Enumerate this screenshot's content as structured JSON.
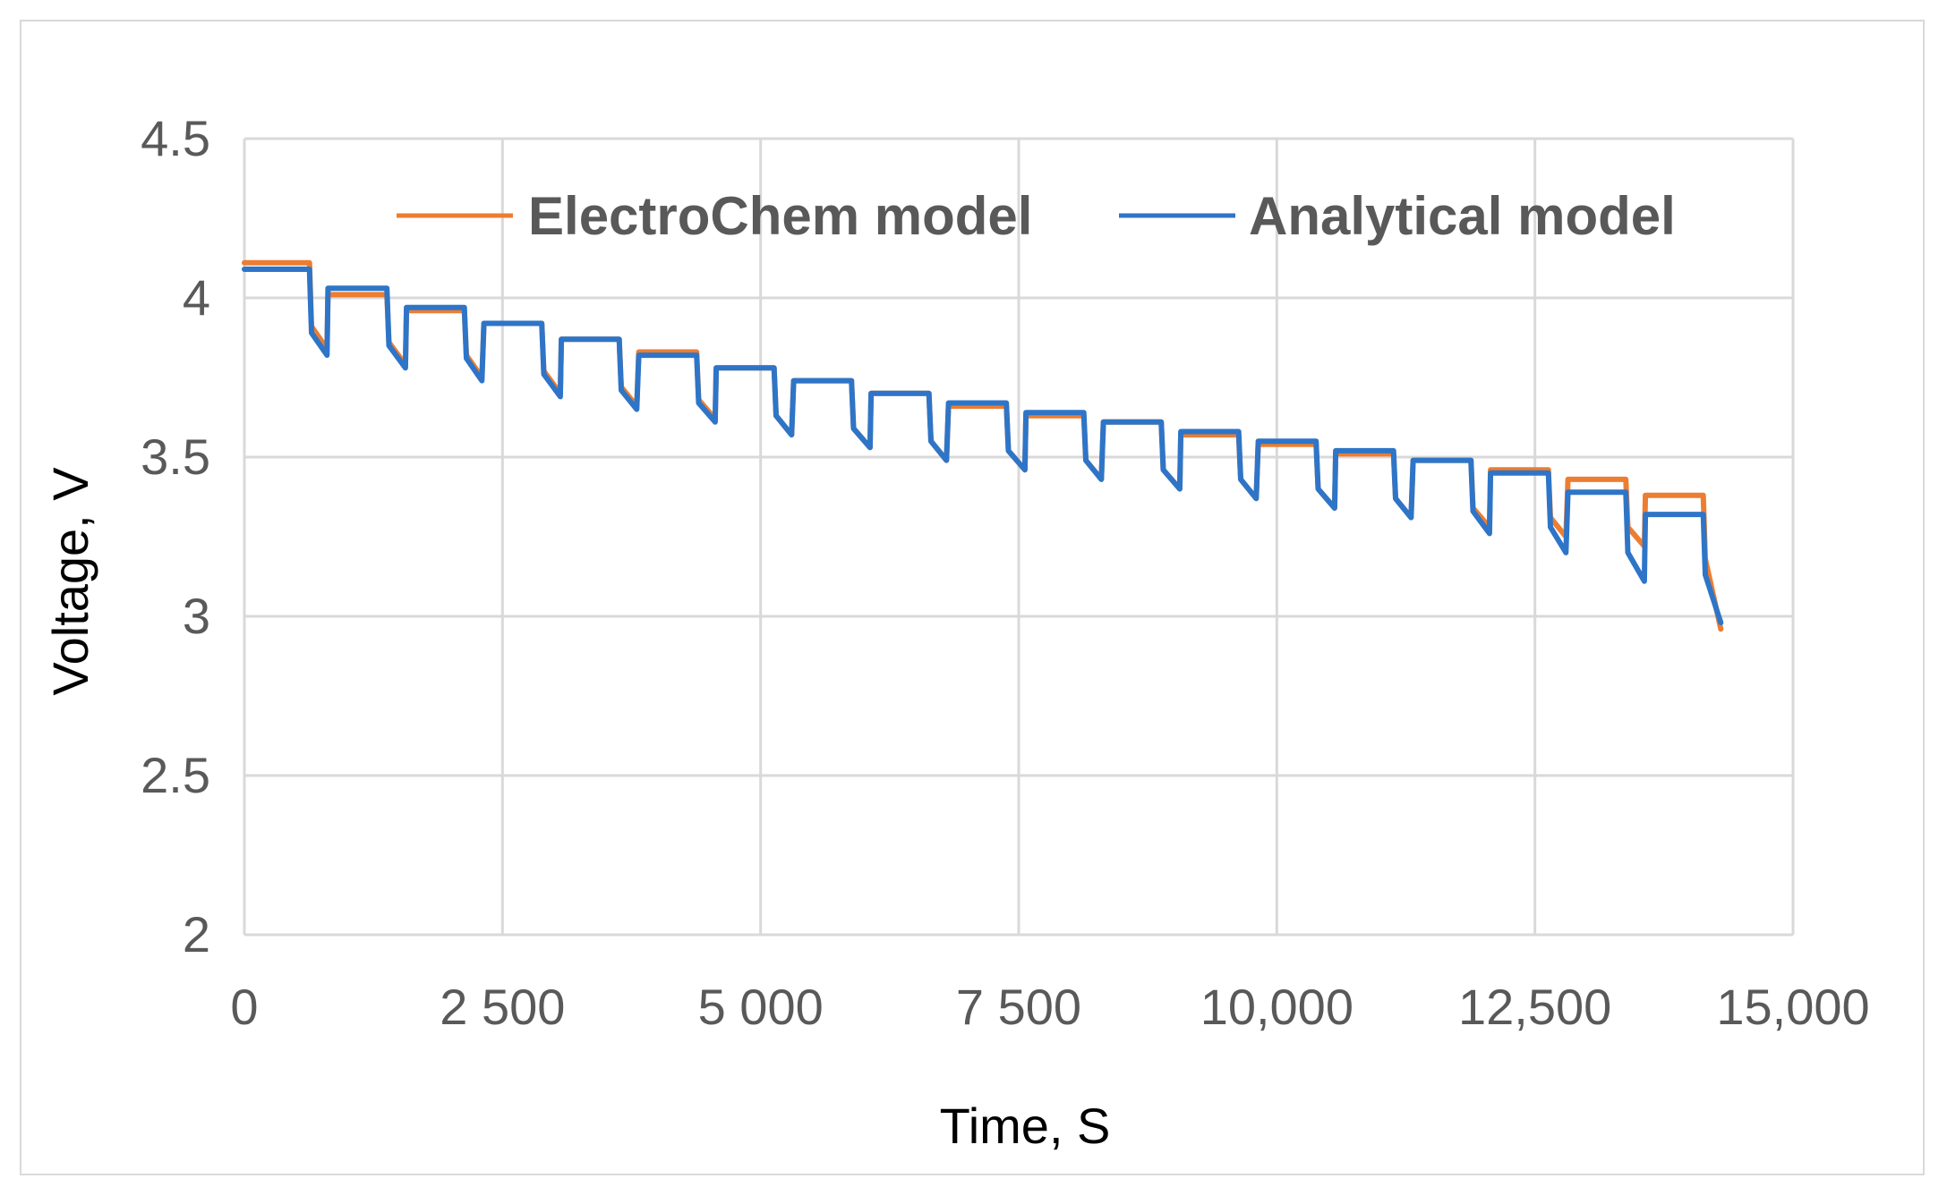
{
  "chart_data": {
    "type": "line",
    "title": "",
    "xlabel": "Time, S",
    "ylabel": "Voltage, V",
    "xlim": [
      0,
      15000
    ],
    "ylim": [
      2,
      4.5
    ],
    "grid": true,
    "legend_position": "top",
    "x_ticks": [
      {
        "value": 0,
        "label": "0"
      },
      {
        "value": 2500,
        "label": "2 500"
      },
      {
        "value": 5000,
        "label": "5 000"
      },
      {
        "value": 7500,
        "label": "7 500"
      },
      {
        "value": 10000,
        "label": "10,000"
      },
      {
        "value": 12500,
        "label": "12,500"
      },
      {
        "value": 15000,
        "label": "15,000"
      }
    ],
    "y_ticks": [
      {
        "value": 2,
        "label": "2"
      },
      {
        "value": 2.5,
        "label": "2.5"
      },
      {
        "value": 3,
        "label": "3"
      },
      {
        "value": 3.5,
        "label": "3.5"
      },
      {
        "value": 4,
        "label": "4"
      },
      {
        "value": 4.5,
        "label": "4.5"
      }
    ],
    "series": [
      {
        "name": "ElectroChem model",
        "color": "#ED7D31",
        "points": [
          [
            0,
            4.11
          ],
          [
            630,
            4.11
          ],
          [
            650,
            3.91
          ],
          [
            800,
            3.84
          ],
          [
            810,
            4.01
          ],
          [
            1380,
            4.01
          ],
          [
            1400,
            3.86
          ],
          [
            1560,
            3.79
          ],
          [
            1570,
            3.96
          ],
          [
            2130,
            3.96
          ],
          [
            2150,
            3.82
          ],
          [
            2300,
            3.75
          ],
          [
            2320,
            3.92
          ],
          [
            2880,
            3.92
          ],
          [
            2900,
            3.77
          ],
          [
            3060,
            3.7
          ],
          [
            3070,
            3.87
          ],
          [
            3630,
            3.87
          ],
          [
            3650,
            3.72
          ],
          [
            3800,
            3.66
          ],
          [
            3820,
            3.83
          ],
          [
            4380,
            3.83
          ],
          [
            4400,
            3.68
          ],
          [
            4560,
            3.62
          ],
          [
            4570,
            3.78
          ],
          [
            5130,
            3.78
          ],
          [
            5150,
            3.63
          ],
          [
            5300,
            3.57
          ],
          [
            5320,
            3.74
          ],
          [
            5880,
            3.74
          ],
          [
            5900,
            3.59
          ],
          [
            6060,
            3.53
          ],
          [
            6070,
            3.7
          ],
          [
            6630,
            3.7
          ],
          [
            6650,
            3.55
          ],
          [
            6800,
            3.49
          ],
          [
            6820,
            3.66
          ],
          [
            7380,
            3.66
          ],
          [
            7400,
            3.52
          ],
          [
            7560,
            3.46
          ],
          [
            7570,
            3.63
          ],
          [
            8130,
            3.63
          ],
          [
            8150,
            3.49
          ],
          [
            8300,
            3.43
          ],
          [
            8320,
            3.61
          ],
          [
            8880,
            3.61
          ],
          [
            8900,
            3.46
          ],
          [
            9060,
            3.4
          ],
          [
            9070,
            3.57
          ],
          [
            9630,
            3.57
          ],
          [
            9650,
            3.43
          ],
          [
            9800,
            3.37
          ],
          [
            9820,
            3.54
          ],
          [
            10380,
            3.54
          ],
          [
            10400,
            3.4
          ],
          [
            10560,
            3.34
          ],
          [
            10570,
            3.51
          ],
          [
            11130,
            3.51
          ],
          [
            11150,
            3.37
          ],
          [
            11300,
            3.31
          ],
          [
            11320,
            3.49
          ],
          [
            11880,
            3.49
          ],
          [
            11900,
            3.34
          ],
          [
            12060,
            3.28
          ],
          [
            12070,
            3.46
          ],
          [
            12630,
            3.46
          ],
          [
            12650,
            3.31
          ],
          [
            12800,
            3.25
          ],
          [
            12820,
            3.43
          ],
          [
            13380,
            3.43
          ],
          [
            13400,
            3.28
          ],
          [
            13560,
            3.22
          ],
          [
            13570,
            3.38
          ],
          [
            14130,
            3.38
          ],
          [
            14150,
            3.18
          ],
          [
            14300,
            2.96
          ]
        ]
      },
      {
        "name": "Analytical model",
        "color": "#2E75C8",
        "points": [
          [
            0,
            4.09
          ],
          [
            630,
            4.09
          ],
          [
            650,
            3.89
          ],
          [
            800,
            3.82
          ],
          [
            810,
            4.03
          ],
          [
            1380,
            4.03
          ],
          [
            1400,
            3.85
          ],
          [
            1560,
            3.78
          ],
          [
            1570,
            3.97
          ],
          [
            2130,
            3.97
          ],
          [
            2150,
            3.81
          ],
          [
            2300,
            3.74
          ],
          [
            2320,
            3.92
          ],
          [
            2880,
            3.92
          ],
          [
            2900,
            3.76
          ],
          [
            3060,
            3.69
          ],
          [
            3070,
            3.87
          ],
          [
            3630,
            3.87
          ],
          [
            3650,
            3.71
          ],
          [
            3800,
            3.65
          ],
          [
            3820,
            3.82
          ],
          [
            4380,
            3.82
          ],
          [
            4400,
            3.67
          ],
          [
            4560,
            3.61
          ],
          [
            4570,
            3.78
          ],
          [
            5130,
            3.78
          ],
          [
            5150,
            3.63
          ],
          [
            5300,
            3.57
          ],
          [
            5320,
            3.74
          ],
          [
            5880,
            3.74
          ],
          [
            5900,
            3.59
          ],
          [
            6060,
            3.53
          ],
          [
            6070,
            3.7
          ],
          [
            6630,
            3.7
          ],
          [
            6650,
            3.55
          ],
          [
            6800,
            3.49
          ],
          [
            6820,
            3.67
          ],
          [
            7380,
            3.67
          ],
          [
            7400,
            3.52
          ],
          [
            7560,
            3.46
          ],
          [
            7570,
            3.64
          ],
          [
            8130,
            3.64
          ],
          [
            8150,
            3.49
          ],
          [
            8300,
            3.43
          ],
          [
            8320,
            3.61
          ],
          [
            8880,
            3.61
          ],
          [
            8900,
            3.46
          ],
          [
            9060,
            3.4
          ],
          [
            9070,
            3.58
          ],
          [
            9630,
            3.58
          ],
          [
            9650,
            3.43
          ],
          [
            9800,
            3.37
          ],
          [
            9820,
            3.55
          ],
          [
            10380,
            3.55
          ],
          [
            10400,
            3.4
          ],
          [
            10560,
            3.34
          ],
          [
            10570,
            3.52
          ],
          [
            11130,
            3.52
          ],
          [
            11150,
            3.37
          ],
          [
            11300,
            3.31
          ],
          [
            11320,
            3.49
          ],
          [
            11880,
            3.49
          ],
          [
            11900,
            3.33
          ],
          [
            12060,
            3.26
          ],
          [
            12070,
            3.45
          ],
          [
            12630,
            3.45
          ],
          [
            12650,
            3.28
          ],
          [
            12800,
            3.2
          ],
          [
            12820,
            3.39
          ],
          [
            13380,
            3.39
          ],
          [
            13400,
            3.2
          ],
          [
            13560,
            3.11
          ],
          [
            13570,
            3.32
          ],
          [
            14130,
            3.32
          ],
          [
            14150,
            3.13
          ],
          [
            14300,
            2.98
          ]
        ]
      }
    ]
  }
}
